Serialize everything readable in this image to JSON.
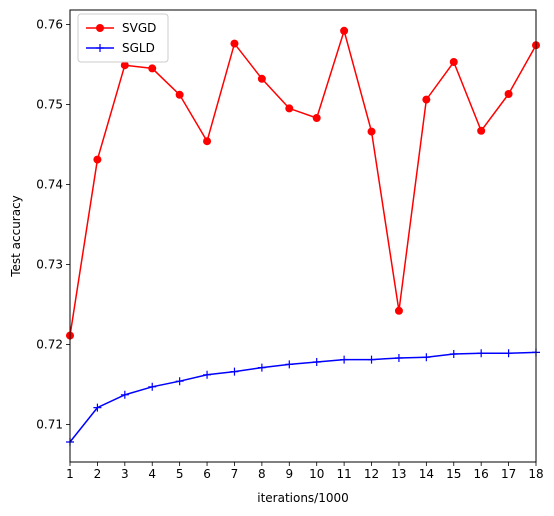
{
  "chart_data": {
    "type": "line",
    "title": "",
    "xlabel": "iterations/1000",
    "ylabel": "Test accuracy",
    "x": [
      1,
      2,
      3,
      4,
      5,
      6,
      7,
      8,
      9,
      10,
      11,
      12,
      13,
      14,
      15,
      16,
      17,
      18
    ],
    "xlim": [
      1,
      18
    ],
    "ylim": [
      0.7053,
      0.7618
    ],
    "yticks": [
      0.71,
      0.72,
      0.73,
      0.74,
      0.75,
      0.76
    ],
    "ytick_labels": [
      "0.71",
      "0.72",
      "0.73",
      "0.74",
      "0.75",
      "0.76"
    ],
    "xtick_labels": [
      "1",
      "2",
      "3",
      "4",
      "5",
      "6",
      "7",
      "8",
      "9",
      "10",
      "11",
      "12",
      "13",
      "14",
      "15",
      "16",
      "17",
      "18"
    ],
    "grid": false,
    "legend_position": "top-left",
    "series": [
      {
        "name": "SVGD",
        "color": "#ff0000",
        "marker": "circle",
        "values": [
          0.7211,
          0.7431,
          0.7549,
          0.7545,
          0.7512,
          0.7454,
          0.7576,
          0.7532,
          0.7495,
          0.7483,
          0.7592,
          0.7466,
          0.7242,
          0.7506,
          0.7553,
          0.7467,
          0.7513,
          0.7574
        ]
      },
      {
        "name": "SGLD",
        "color": "#0000ff",
        "marker": "plus",
        "values": [
          0.7078,
          0.7121,
          0.7137,
          0.7147,
          0.7154,
          0.7162,
          0.7166,
          0.7171,
          0.7175,
          0.7178,
          0.7181,
          0.7181,
          0.7183,
          0.7184,
          0.7188,
          0.7189,
          0.7189,
          0.719
        ]
      }
    ]
  }
}
